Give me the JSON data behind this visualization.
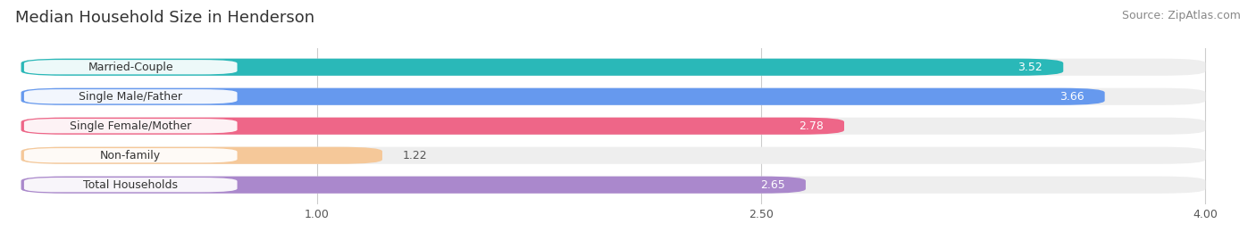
{
  "title": "Median Household Size in Henderson",
  "source": "Source: ZipAtlas.com",
  "categories": [
    "Married-Couple",
    "Single Male/Father",
    "Single Female/Mother",
    "Non-family",
    "Total Households"
  ],
  "values": [
    3.52,
    3.66,
    2.78,
    1.22,
    2.65
  ],
  "bar_colors": [
    "#2ab8b8",
    "#6699ee",
    "#ee6688",
    "#f5c899",
    "#aa88cc"
  ],
  "label_text_colors": [
    "#555555",
    "#555555",
    "#555555",
    "#aa7733",
    "#555555"
  ],
  "x_min": 0.0,
  "x_max": 4.0,
  "xticks": [
    1.0,
    2.5,
    4.0
  ],
  "xtick_labels": [
    "1.00",
    "2.50",
    "4.00"
  ],
  "background_color": "#ffffff",
  "bar_bg_color": "#eeeeee",
  "title_fontsize": 13,
  "source_fontsize": 9,
  "bar_label_fontsize": 9,
  "category_label_fontsize": 9
}
